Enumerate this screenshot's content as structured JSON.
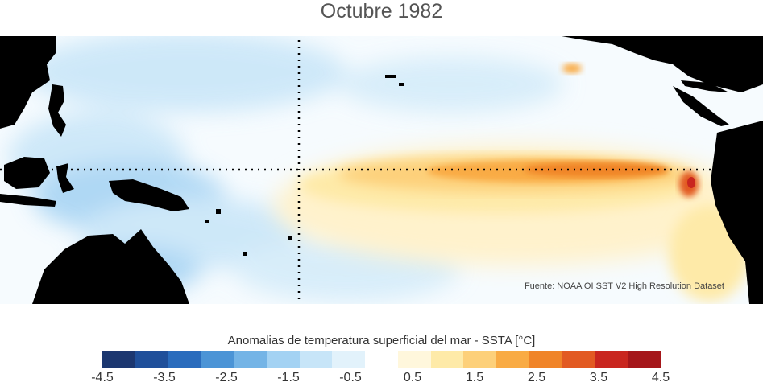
{
  "title": "Octubre 1982",
  "source_note": "Fuente: NOAA OI SST V2 High Resolution Dataset",
  "legend": {
    "title": "Anomalias de temperatura superficial del mar - SSTA  [°C]",
    "ticks": [
      "-4.5",
      "-3.5",
      "-2.5",
      "-1.5",
      "-0.5",
      "0.5",
      "1.5",
      "2.5",
      "3.5",
      "4.5"
    ],
    "colors": [
      "#1c3770",
      "#1f4f9a",
      "#2a6cbd",
      "#4b94d6",
      "#74b4e6",
      "#a3d2f3",
      "#c7e5f8",
      "#e2f2fb",
      "#ffffff",
      "#fff7dc",
      "#feeaa8",
      "#fdd07a",
      "#f9ab44",
      "#f08428",
      "#e25a22",
      "#c9261f",
      "#a5161a"
    ],
    "land_color": "#000000"
  }
}
